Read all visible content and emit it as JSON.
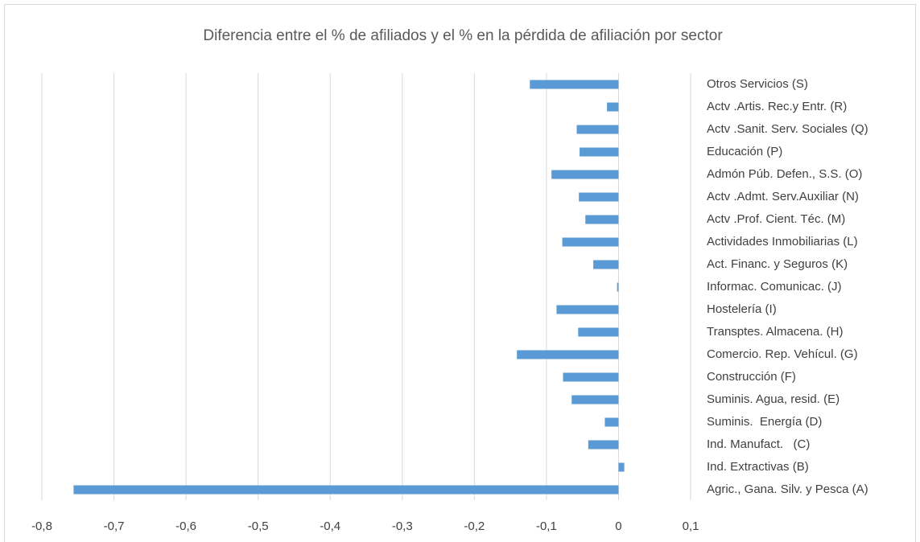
{
  "chart_data": {
    "type": "bar",
    "orientation": "horizontal",
    "title": "Diferencia entre el % de afiliados y el % en la pérdida de afiliación por sector",
    "categories": [
      "Otros Servicios (S)",
      "Actv .Artis. Rec.y Entr. (R)",
      "Actv .Sanit. Serv. Sociales (Q)",
      "Educación (P)",
      "Admón Púb. Defen., S.S. (O)",
      "Actv .Admt. Serv.Auxiliar (N)",
      "Actv .Prof. Cient. Téc. (M)",
      "Actividades Inmobiliarias (L)",
      "Act. Financ. y Seguros (K)",
      "Informac. Comunicac. (J)",
      "Hostelería (I)",
      "Transptes. Almacena. (H)",
      "Comercio. Rep. Vehícul. (G)",
      "Construcción (F)",
      "Suminis. Agua, resid. (E)",
      "Suminis.  Energía (D)",
      "Ind. Manufact.   (C)",
      "Ind. Extractivas (B)",
      "Agric., Gana. Silv. y Pesca (A)"
    ],
    "values": [
      -0.123,
      -0.016,
      -0.058,
      -0.054,
      -0.093,
      -0.055,
      -0.046,
      -0.078,
      -0.035,
      -0.002,
      -0.086,
      -0.056,
      -0.141,
      -0.077,
      -0.065,
      -0.019,
      -0.042,
      0.008,
      -0.756
    ],
    "color": "#5b9bd5",
    "xlim": [
      -0.8,
      0.1
    ],
    "xticks": [
      {
        "value": -0.8,
        "label": "-0,8"
      },
      {
        "value": -0.7,
        "label": "-0,7"
      },
      {
        "value": -0.6,
        "label": "-0,6"
      },
      {
        "value": -0.5,
        "label": "-0,5"
      },
      {
        "value": -0.4,
        "label": "-0,4"
      },
      {
        "value": -0.3,
        "label": "-0,3"
      },
      {
        "value": -0.2,
        "label": "-0,2"
      },
      {
        "value": -0.1,
        "label": "-0,1"
      },
      0,
      {
        "value": 0.1,
        "label": "0,1"
      }
    ],
    "grid": true
  }
}
